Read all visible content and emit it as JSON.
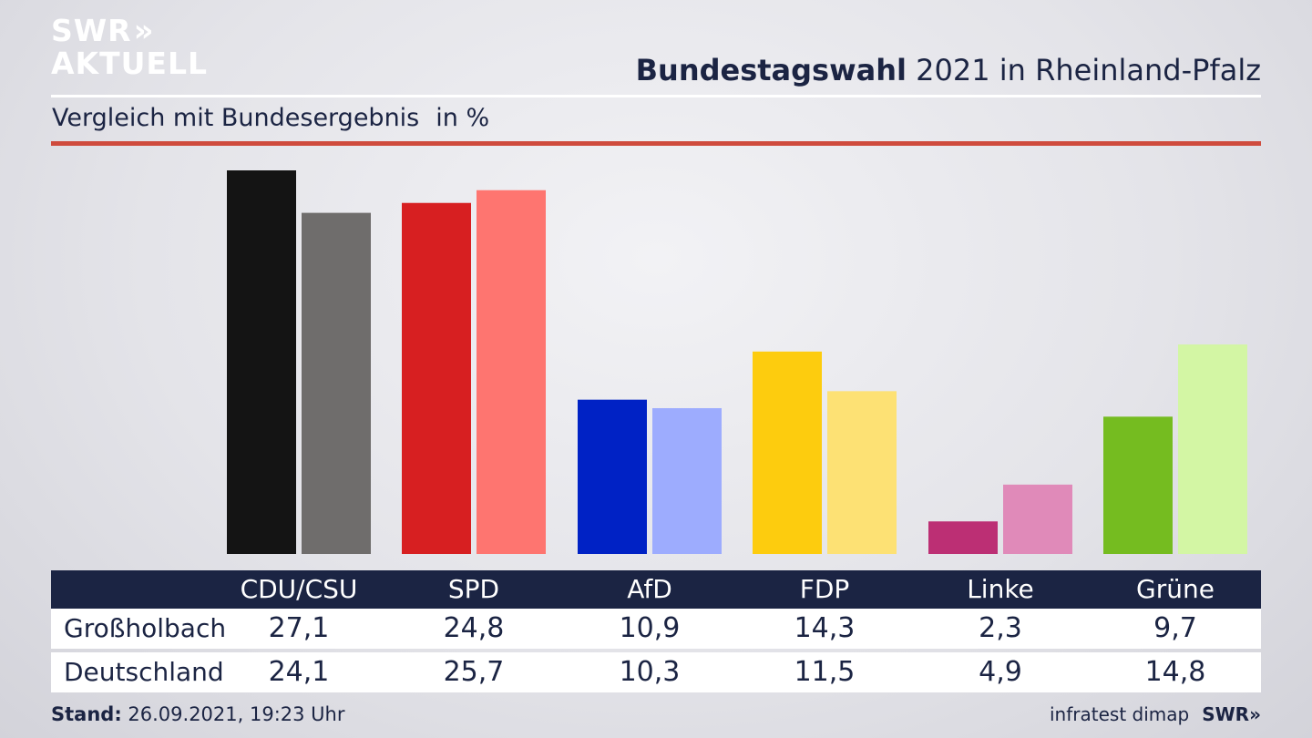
{
  "logo": {
    "line1": "SWR",
    "line2": "AKTUELL",
    "chevrons": "»"
  },
  "header": {
    "title_bold": "Bundestagswahl",
    "title_rest": " 2021 in Rheinland-Pfalz"
  },
  "subtitle": {
    "text": "Vergleich mit Bundesergebnis",
    "unit": "in %"
  },
  "table": {
    "rows": [
      {
        "label": "Großholbach",
        "values": [
          "27,1",
          "24,8",
          "10,9",
          "14,3",
          "2,3",
          "9,7"
        ]
      },
      {
        "label": "Deutschland",
        "values": [
          "24,1",
          "25,7",
          "10,3",
          "11,5",
          "4,9",
          "14,8"
        ]
      }
    ]
  },
  "footer": {
    "stand_label": "Stand:",
    "stand_value": " 26.09.2021, 19:23 Uhr",
    "source": "infratest dimap",
    "source_logo": "SWR»"
  },
  "chart_data": {
    "type": "bar",
    "title": "Bundestagswahl 2021 in Rheinland-Pfalz",
    "subtitle": "Vergleich mit Bundesergebnis",
    "unit": "in %",
    "categories": [
      "CDU/CSU",
      "SPD",
      "AfD",
      "FDP",
      "Linke",
      "Grüne"
    ],
    "series": [
      {
        "name": "Großholbach",
        "values": [
          27.1,
          24.8,
          10.9,
          14.3,
          2.3,
          9.7
        ],
        "colors": [
          "#141414",
          "#d71f21",
          "#0022c5",
          "#fdcc0e",
          "#bc2f74",
          "#75bc20"
        ]
      },
      {
        "name": "Deutschland",
        "values": [
          24.1,
          25.7,
          10.3,
          11.5,
          4.9,
          14.8
        ],
        "colors": [
          "#6f6d6c",
          "#fe7570",
          "#9dacfe",
          "#fde174",
          "#e08ab9",
          "#d3f6a4"
        ]
      }
    ],
    "ylim": [
      0,
      27.1
    ],
    "grid": false,
    "legend": "table below chart"
  }
}
